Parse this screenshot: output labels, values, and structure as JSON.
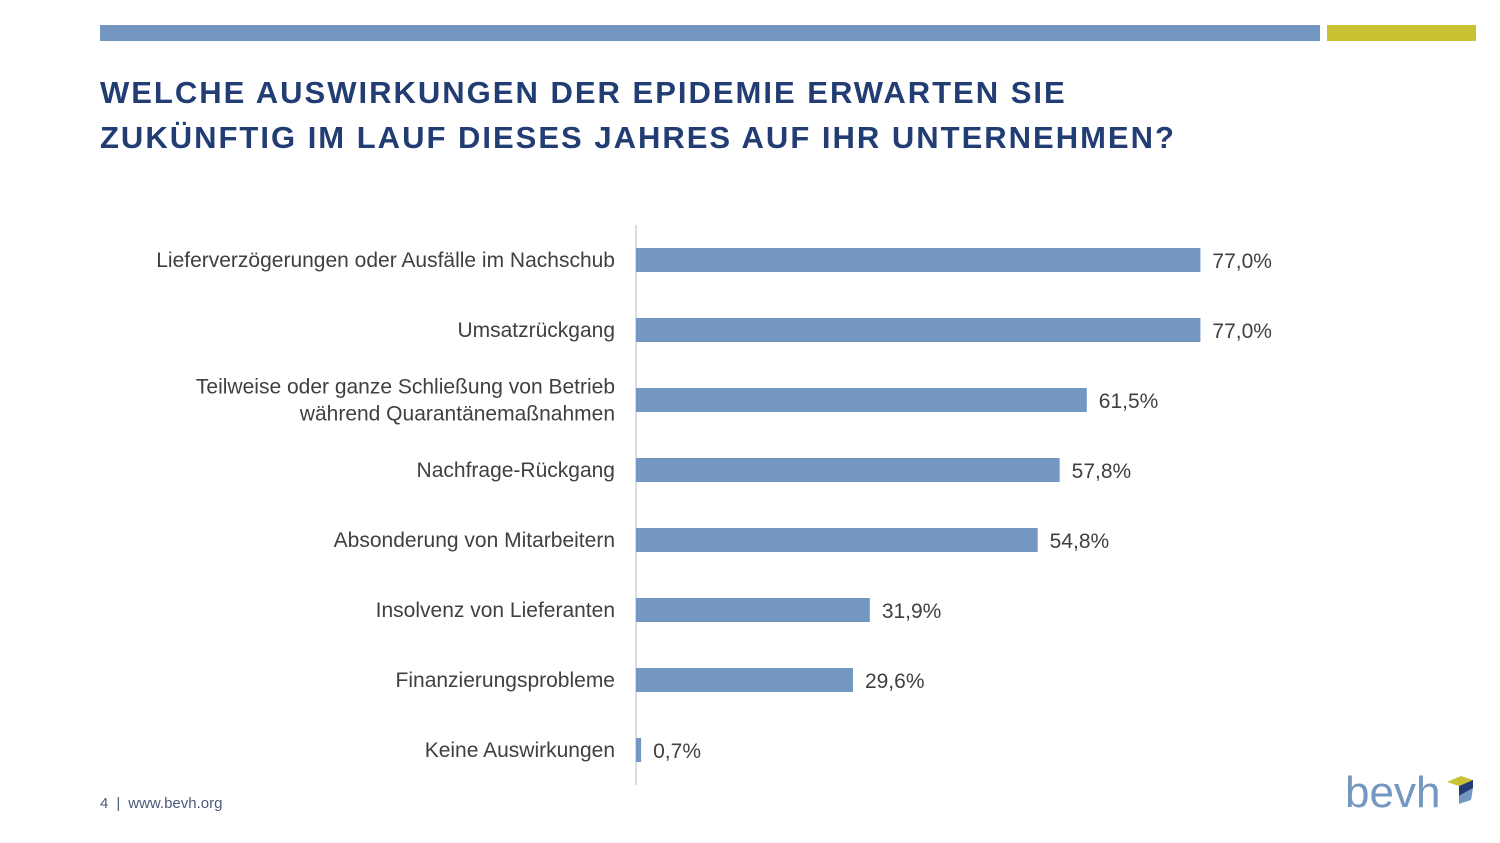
{
  "colors": {
    "primary_blue": "#7397c0",
    "accent_yellow": "#c9c232",
    "title_navy": "#223d73",
    "text_gray": "#404040",
    "axis_gray": "#d0d0d0"
  },
  "title": {
    "line1": "WELCHE AUSWIRKUNGEN DER EPIDEMIE ERWARTEN SIE",
    "line2": "ZUKÜNFTIG IM LAUF DIESES JAHRES AUF IHR UNTERNEHMEN?"
  },
  "chart_data": {
    "type": "bar",
    "orientation": "horizontal",
    "categories": [
      [
        "Lieferverzögerungen oder Ausfälle im Nachschub"
      ],
      [
        "Umsatzrückgang"
      ],
      [
        "Teilweise oder ganze Schließung von Betrieb",
        "während Quarantänemaßnahmen"
      ],
      [
        "Nachfrage-Rückgang"
      ],
      [
        "Absonderung von Mitarbeitern"
      ],
      [
        "Insolvenz von Lieferanten"
      ],
      [
        "Finanzierungsprobleme"
      ],
      [
        "Keine Auswirkungen"
      ]
    ],
    "values": [
      77.0,
      77.0,
      61.5,
      57.8,
      54.8,
      31.9,
      29.6,
      0.7
    ],
    "value_labels": [
      "77,0%",
      "77,0%",
      "61,5%",
      "57,8%",
      "54,8%",
      "31,9%",
      "29,6%",
      "0,7%"
    ],
    "xlim": [
      0,
      100
    ],
    "grid": false,
    "legend": "none"
  },
  "footer": {
    "page": "4",
    "separator": "|",
    "url": "www.bevh.org"
  },
  "logo": {
    "text": "bevh"
  }
}
